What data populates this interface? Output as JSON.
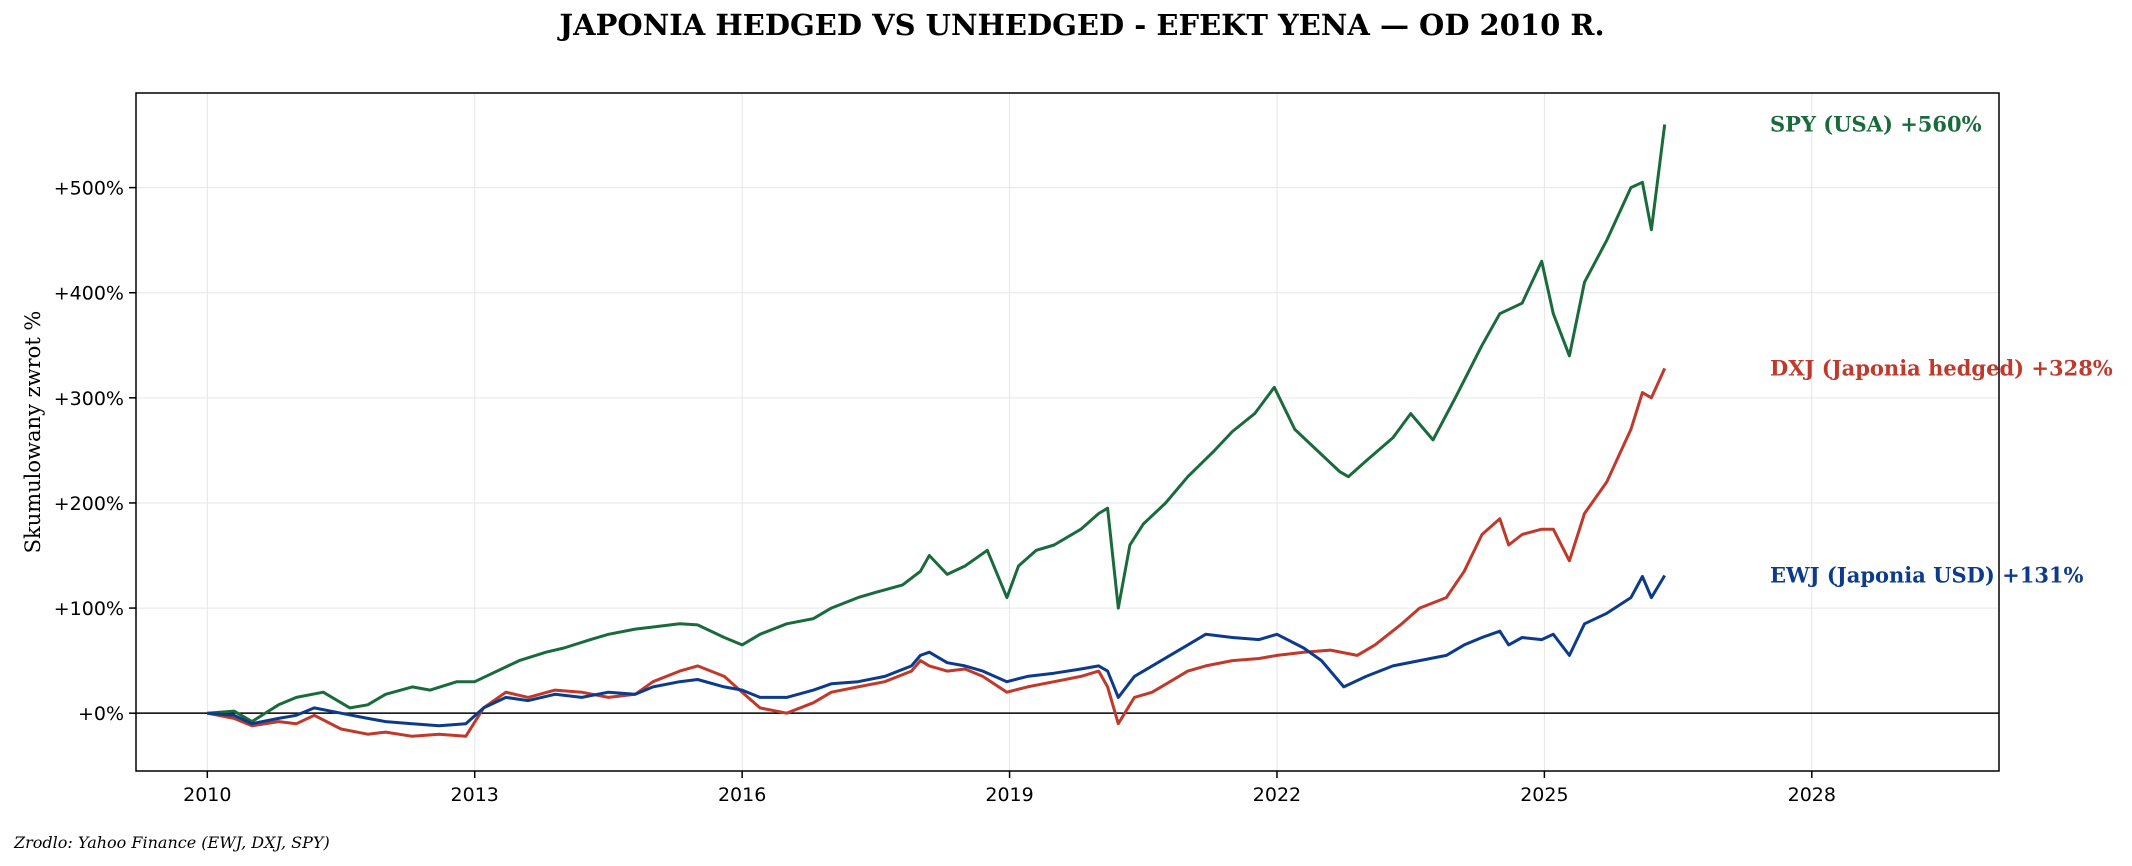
{
  "title": "JAPONIA HEDGED VS UNHEDGED - EFEKT YENA — OD 2010 R.",
  "source": "Zrodlo: Yahoo Finance (EWJ, DXJ, SPY)",
  "chart_data": {
    "type": "line",
    "title": "JAPONIA HEDGED VS UNHEDGED - EFEKT YENA — OD 2010 R.",
    "xlabel": "",
    "ylabel": "Skumulowany zwrot %",
    "xlim": [
      2009.2,
      2030.1
    ],
    "ylim": [
      -55,
      590
    ],
    "x_ticks": [
      2010,
      2013,
      2016,
      2019,
      2022,
      2025,
      2028
    ],
    "y_ticks": [
      0,
      100,
      200,
      300,
      400,
      500
    ],
    "y_tick_labels": [
      "+0%",
      "+100%",
      "+200%",
      "+300%",
      "+400%",
      "+500%"
    ],
    "grid": true,
    "reference_line": 0,
    "series": [
      {
        "name": "SPY (USA)",
        "label": "SPY (USA)  +560%",
        "color": "#1a6b3c",
        "x": [
          2010.0,
          2010.3,
          2010.5,
          2010.8,
          2011.0,
          2011.3,
          2011.6,
          2011.8,
          2012.0,
          2012.3,
          2012.5,
          2012.8,
          2013.0,
          2013.3,
          2013.5,
          2013.8,
          2014.0,
          2014.3,
          2014.5,
          2014.8,
          2015.0,
          2015.3,
          2015.5,
          2015.8,
          2016.0,
          2016.2,
          2016.5,
          2016.8,
          2017.0,
          2017.3,
          2017.5,
          2017.8,
          2018.0,
          2018.1,
          2018.3,
          2018.5,
          2018.75,
          2018.97,
          2019.1,
          2019.3,
          2019.5,
          2019.8,
          2020.0,
          2020.1,
          2020.22,
          2020.35,
          2020.5,
          2020.75,
          2021.0,
          2021.3,
          2021.5,
          2021.75,
          2021.97,
          2022.2,
          2022.45,
          2022.7,
          2022.8,
          2023.0,
          2023.3,
          2023.5,
          2023.75,
          2024.0,
          2024.3,
          2024.5,
          2024.75,
          2024.97,
          2025.1,
          2025.28,
          2025.45,
          2025.7,
          2025.97,
          2026.1,
          2026.2,
          2026.35
        ],
        "values": [
          0,
          2,
          -8,
          8,
          15,
          20,
          5,
          8,
          18,
          25,
          22,
          30,
          30,
          42,
          50,
          58,
          62,
          70,
          75,
          80,
          82,
          85,
          84,
          72,
          65,
          75,
          85,
          90,
          100,
          110,
          115,
          122,
          135,
          150,
          132,
          140,
          155,
          110,
          140,
          155,
          160,
          175,
          190,
          195,
          100,
          160,
          180,
          200,
          225,
          250,
          268,
          285,
          310,
          270,
          250,
          230,
          225,
          240,
          262,
          285,
          260,
          300,
          350,
          380,
          390,
          430,
          380,
          340,
          410,
          450,
          500,
          505,
          460,
          560
        ]
      },
      {
        "name": "DXJ (Japonia hedged)",
        "label": "DXJ (Japonia hedged)  +328%",
        "color": "#c0392b",
        "x": [
          2010.0,
          2010.3,
          2010.5,
          2010.8,
          2011.0,
          2011.2,
          2011.5,
          2011.8,
          2012.0,
          2012.3,
          2012.6,
          2012.9,
          2013.1,
          2013.35,
          2013.6,
          2013.9,
          2014.2,
          2014.5,
          2014.8,
          2015.0,
          2015.3,
          2015.5,
          2015.8,
          2016.0,
          2016.2,
          2016.5,
          2016.8,
          2017.0,
          2017.3,
          2017.6,
          2017.9,
          2018.0,
          2018.1,
          2018.3,
          2018.5,
          2018.7,
          2018.97,
          2019.2,
          2019.5,
          2019.8,
          2020.0,
          2020.1,
          2020.22,
          2020.4,
          2020.6,
          2020.8,
          2021.0,
          2021.2,
          2021.5,
          2021.8,
          2022.0,
          2022.3,
          2022.6,
          2022.9,
          2023.1,
          2023.4,
          2023.6,
          2023.9,
          2024.1,
          2024.3,
          2024.5,
          2024.6,
          2024.75,
          2024.97,
          2025.1,
          2025.28,
          2025.45,
          2025.7,
          2025.97,
          2026.1,
          2026.2,
          2026.35
        ],
        "values": [
          0,
          -5,
          -12,
          -8,
          -10,
          -2,
          -15,
          -20,
          -18,
          -22,
          -20,
          -22,
          5,
          20,
          15,
          22,
          20,
          15,
          18,
          30,
          40,
          45,
          35,
          20,
          5,
          0,
          10,
          20,
          25,
          30,
          40,
          50,
          45,
          40,
          42,
          35,
          20,
          25,
          30,
          35,
          40,
          25,
          -10,
          15,
          20,
          30,
          40,
          45,
          50,
          52,
          55,
          58,
          60,
          55,
          65,
          85,
          100,
          110,
          135,
          170,
          185,
          160,
          170,
          175,
          175,
          145,
          190,
          220,
          270,
          305,
          300,
          328
        ]
      },
      {
        "name": "EWJ (Japonia USD)",
        "label": "EWJ (Japonia USD)  +131%",
        "color": "#0d3b8c",
        "x": [
          2010.0,
          2010.3,
          2010.5,
          2010.8,
          2011.0,
          2011.2,
          2011.5,
          2011.8,
          2012.0,
          2012.3,
          2012.6,
          2012.9,
          2013.1,
          2013.35,
          2013.6,
          2013.9,
          2014.2,
          2014.5,
          2014.8,
          2015.0,
          2015.3,
          2015.5,
          2015.8,
          2016.0,
          2016.2,
          2016.5,
          2016.8,
          2017.0,
          2017.3,
          2017.6,
          2017.9,
          2018.0,
          2018.1,
          2018.3,
          2018.5,
          2018.7,
          2018.97,
          2019.2,
          2019.5,
          2019.8,
          2020.0,
          2020.1,
          2020.22,
          2020.4,
          2020.6,
          2020.8,
          2021.0,
          2021.2,
          2021.5,
          2021.8,
          2022.0,
          2022.3,
          2022.5,
          2022.75,
          2023.0,
          2023.3,
          2023.6,
          2023.9,
          2024.1,
          2024.3,
          2024.5,
          2024.6,
          2024.75,
          2024.97,
          2025.1,
          2025.28,
          2025.45,
          2025.7,
          2025.97,
          2026.1,
          2026.2,
          2026.35
        ],
        "values": [
          0,
          -2,
          -10,
          -5,
          -2,
          5,
          0,
          -5,
          -8,
          -10,
          -12,
          -10,
          5,
          15,
          12,
          18,
          15,
          20,
          18,
          25,
          30,
          32,
          25,
          22,
          15,
          15,
          22,
          28,
          30,
          35,
          45,
          55,
          58,
          48,
          45,
          40,
          30,
          35,
          38,
          42,
          45,
          40,
          15,
          35,
          45,
          55,
          65,
          75,
          72,
          70,
          75,
          62,
          50,
          25,
          35,
          45,
          50,
          55,
          65,
          72,
          78,
          65,
          72,
          70,
          75,
          55,
          85,
          95,
          110,
          130,
          110,
          131
        ]
      }
    ]
  }
}
